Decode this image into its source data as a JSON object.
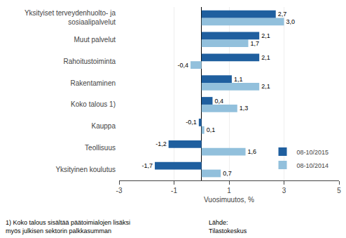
{
  "chart_data": {
    "type": "bar",
    "orientation": "horizontal",
    "categories": [
      "Yksityinen koulutus",
      "Teollisuus",
      "Kauppa",
      "Koko talous 1)",
      "Rakentaminen",
      "Rahoitustoiminta",
      "Muut palvelut",
      "Yksityiset terveydenhuolto- ja\nsosiaalipalvelut"
    ],
    "series": [
      {
        "name": "08-10/2015",
        "color": "#1F5F9F",
        "values": [
          -1.7,
          -1.2,
          -0.1,
          0.4,
          1.1,
          2.1,
          2.1,
          2.7
        ],
        "value_labels": [
          "-1,7",
          "-1,2",
          "-0,1",
          "0,4",
          "1,1",
          "2,1",
          "2,1",
          "2,7"
        ]
      },
      {
        "name": "08-10/2014",
        "color": "#92C0DC",
        "values": [
          0.7,
          1.6,
          0.1,
          1.3,
          2.1,
          -0.4,
          1.7,
          3.0
        ],
        "value_labels": [
          "0,7",
          "1,6",
          "0,1",
          "1,3",
          "2,1",
          "-0,4",
          "1,7",
          "3,0"
        ]
      }
    ],
    "xlabel": "Vuosimuutos, %",
    "xlim": [
      -3,
      5
    ],
    "xticks": [
      -3,
      -1,
      1,
      3,
      5
    ],
    "grid": true,
    "data_labels": true,
    "legend": "lower right",
    "annotations": [
      "1) Koko talous sisältää päätoimialojen lisäksi\nmyös julkisen sektorin palkkasumman",
      "Lähde:\nTilastokeskus"
    ]
  }
}
